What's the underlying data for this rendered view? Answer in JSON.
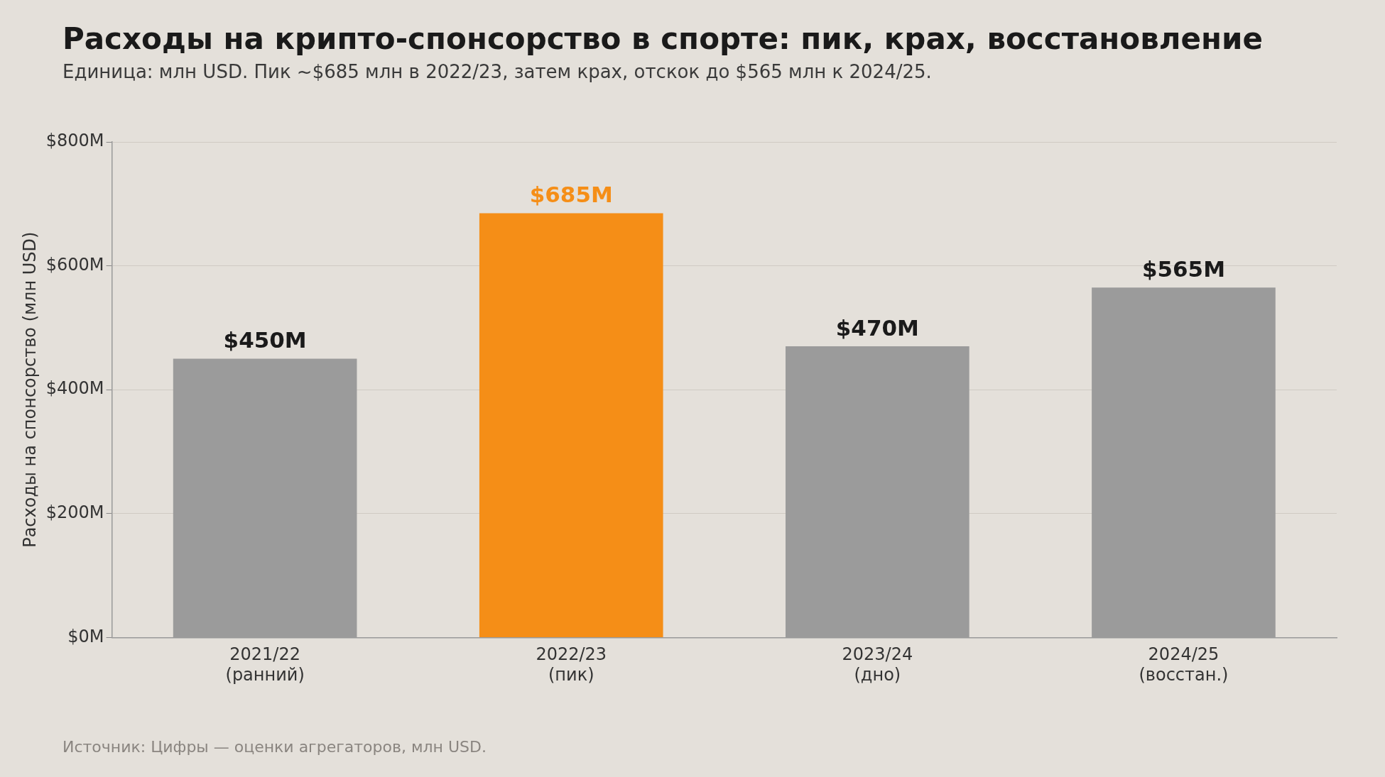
{
  "chart_data": {
    "type": "bar",
    "title": "Расходы на крипто-спонсорство в спорте: пик, крах, восстановление",
    "subtitle": "Единица: млн USD. Пик ~$685 млн в 2022/23, затем крах, отскок до $565 млн к 2024/25.",
    "ylabel": "Расходы на спонсорство (млн USD)",
    "categories": [
      "2021/22\n(ранний)",
      "2022/23\n(пик)",
      "2023/24\n(дно)",
      "2024/25\n(восстан.)"
    ],
    "values": [
      450,
      685,
      470,
      565
    ],
    "colors": [
      "#9b9b9b",
      "#f58e17",
      "#9b9b9b",
      "#9b9b9b"
    ],
    "value_labels": [
      "$450M",
      "$685M",
      "$470M",
      "$565M"
    ],
    "ylim": [
      0,
      800
    ],
    "yticks": [
      {
        "value": 0,
        "label": "$0M"
      },
      {
        "value": 200,
        "label": "$200M"
      },
      {
        "value": 400,
        "label": "$400M"
      },
      {
        "value": 600,
        "label": "$600M"
      },
      {
        "value": 800,
        "label": "$800M"
      }
    ],
    "grid": "y",
    "legend": false,
    "annotations": [
      "Источник: Цифры — оценки агрегаторов, млн USD."
    ]
  }
}
